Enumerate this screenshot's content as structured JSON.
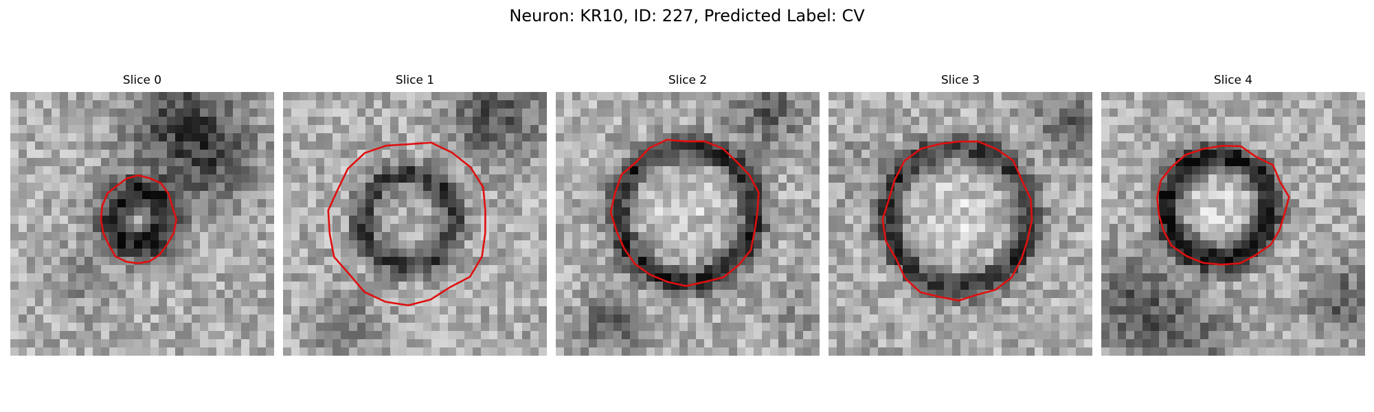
{
  "figure": {
    "title": "Neuron: KR10, ID: 227, Predicted Label: CV"
  },
  "slices": [
    {
      "label": "Slice 0",
      "ring": "small-dark-blob",
      "contour_color": "#e01010"
    },
    {
      "label": "Slice 1",
      "ring": "medium-ring",
      "contour_color": "#e01010"
    },
    {
      "label": "Slice 2",
      "ring": "large-ring",
      "contour_color": "#e01010"
    },
    {
      "label": "Slice 3",
      "ring": "large-ring",
      "contour_color": "#e01010"
    },
    {
      "label": "Slice 4",
      "ring": "medium-ring",
      "contour_color": "#e01010"
    }
  ],
  "colors": {
    "background": "#ffffff",
    "contour": "#e01010"
  }
}
